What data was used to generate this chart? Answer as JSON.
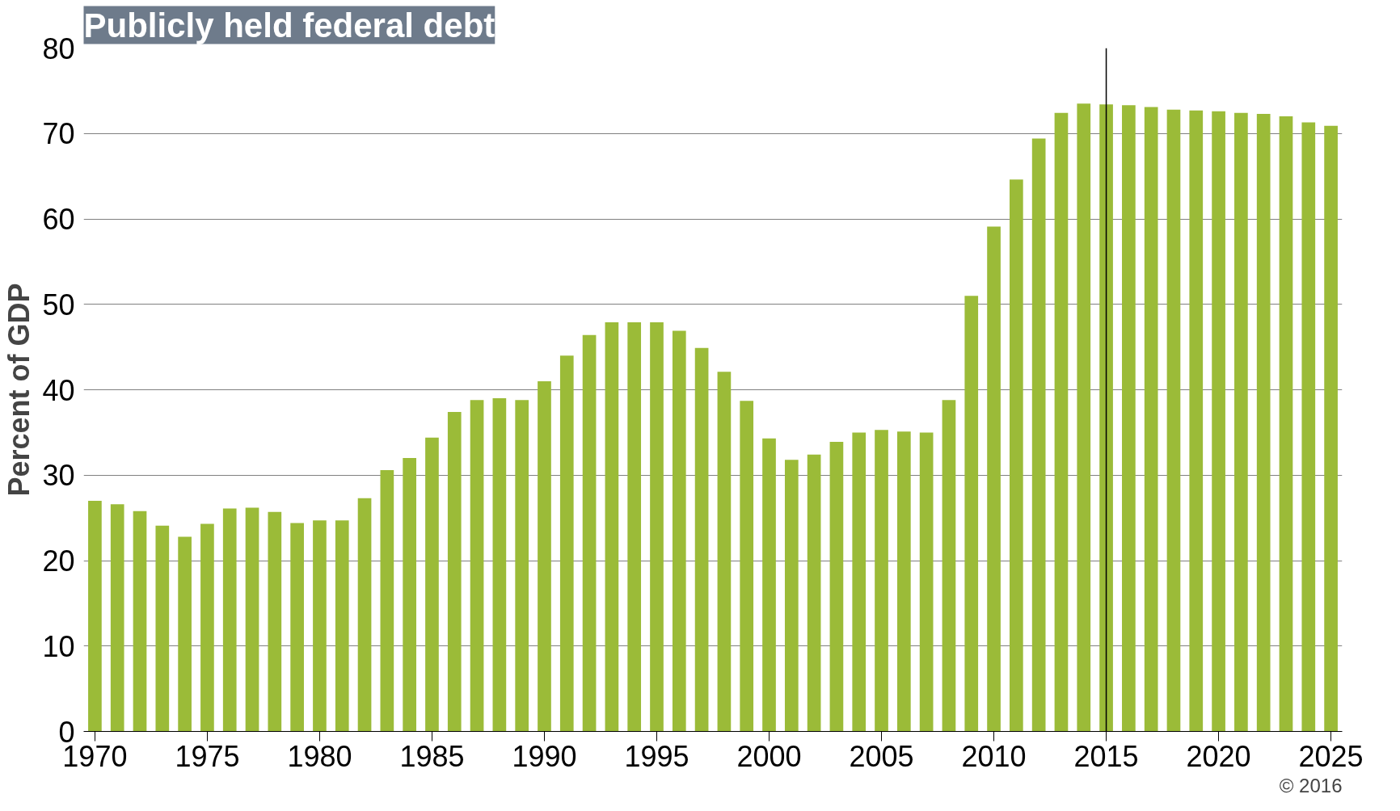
{
  "chart_data": {
    "type": "bar",
    "title": "Publicly held federal debt",
    "ylabel": "Percent of GDP",
    "color": "#9bbb38",
    "x": [
      1970,
      1971,
      1972,
      1973,
      1974,
      1975,
      1976,
      1977,
      1978,
      1979,
      1980,
      1981,
      1982,
      1983,
      1984,
      1985,
      1986,
      1987,
      1988,
      1989,
      1990,
      1991,
      1992,
      1993,
      1994,
      1995,
      1996,
      1997,
      1998,
      1999,
      2000,
      2001,
      2002,
      2003,
      2004,
      2005,
      2006,
      2007,
      2008,
      2009,
      2010,
      2011,
      2012,
      2013,
      2014,
      2015,
      2016,
      2017,
      2018,
      2019,
      2020,
      2021,
      2022,
      2023,
      2024,
      2025
    ],
    "values": [
      27.0,
      26.6,
      25.8,
      24.1,
      22.8,
      24.3,
      26.1,
      26.2,
      25.7,
      24.4,
      24.7,
      24.7,
      27.3,
      30.6,
      32.0,
      34.4,
      37.4,
      38.8,
      39.0,
      38.8,
      41.0,
      44.0,
      46.4,
      47.9,
      47.9,
      47.9,
      46.9,
      44.9,
      42.1,
      38.7,
      34.3,
      31.8,
      32.4,
      33.9,
      35.0,
      35.3,
      35.1,
      35.0,
      38.8,
      51.0,
      59.1,
      64.6,
      69.4,
      72.4,
      73.5,
      73.4,
      73.3,
      73.1,
      72.8,
      72.7,
      72.6,
      72.4,
      72.3,
      72.0,
      71.3,
      70.9
    ],
    "xlim": [
      1969.5,
      2025.5
    ],
    "xticks": [
      1970,
      1975,
      1980,
      1985,
      1990,
      1995,
      2000,
      2005,
      2010,
      2015,
      2020,
      2025
    ],
    "ylim": [
      0,
      80
    ],
    "yticks": [
      0,
      10,
      20,
      30,
      40,
      50,
      60,
      70,
      80
    ],
    "grid": "y",
    "ref_lines": [
      {
        "axis": "x",
        "value": 2015,
        "color": "#000000"
      }
    ],
    "annotations": [
      "© 2016"
    ]
  }
}
